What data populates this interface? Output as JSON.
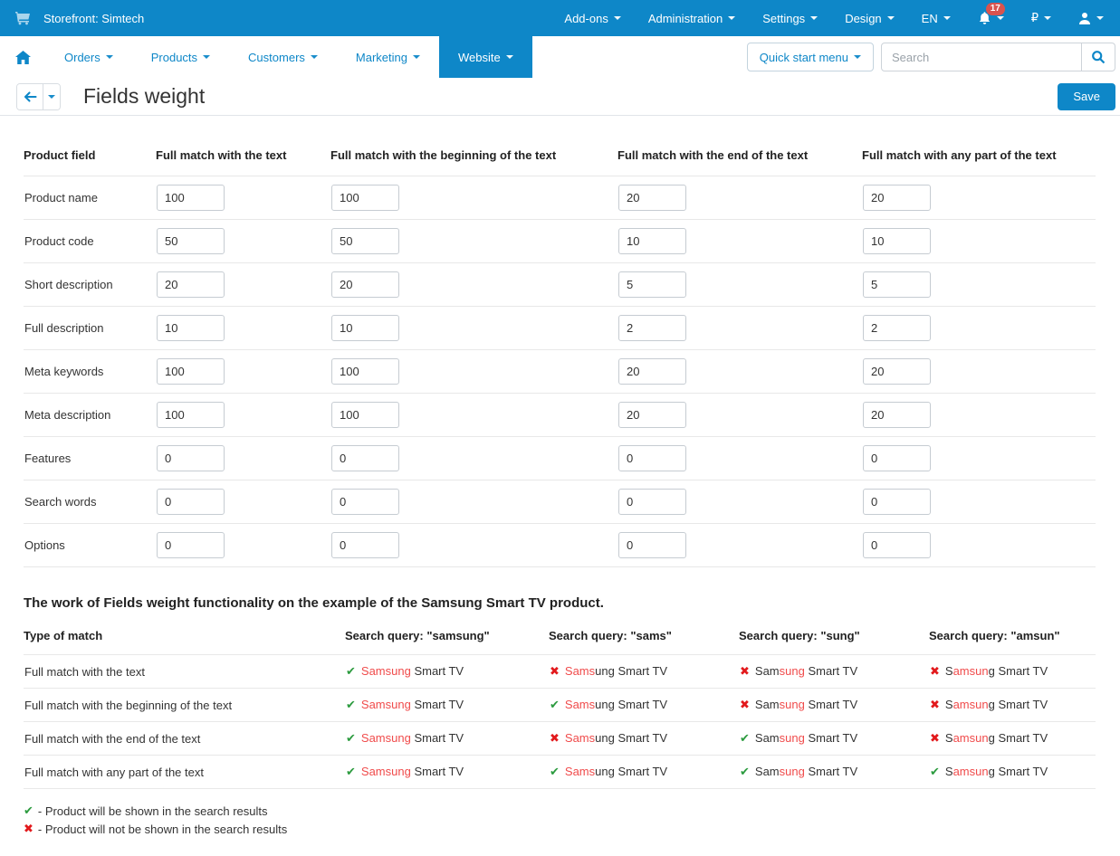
{
  "colors": {
    "accent": "#0e87c8",
    "green": "#2c9b3f",
    "red": "#e2191c",
    "highlight_red": "#f04b4b",
    "badge": "#d9534f"
  },
  "topbar": {
    "storefront_label": "Storefront: Simtech",
    "menus": [
      "Add-ons",
      "Administration",
      "Settings",
      "Design",
      "EN"
    ],
    "notification_count": "17",
    "currency": "₽"
  },
  "nav": {
    "items": [
      "Orders",
      "Products",
      "Customers",
      "Marketing",
      "Website"
    ],
    "active": "Website",
    "quick_start_label": "Quick start menu",
    "search_placeholder": "Search"
  },
  "header": {
    "title": "Fields weight",
    "save_label": "Save"
  },
  "weights_table": {
    "columns": [
      "Product field",
      "Full match with the text",
      "Full match with the beginning of the text",
      "Full match with the end of the text",
      "Full match with any part of the text"
    ],
    "rows": [
      {
        "label": "Product name",
        "values": [
          "100",
          "100",
          "20",
          "20"
        ]
      },
      {
        "label": "Product code",
        "values": [
          "50",
          "50",
          "10",
          "10"
        ]
      },
      {
        "label": "Short description",
        "values": [
          "20",
          "20",
          "5",
          "5"
        ]
      },
      {
        "label": "Full description",
        "values": [
          "10",
          "10",
          "2",
          "2"
        ]
      },
      {
        "label": "Meta keywords",
        "values": [
          "100",
          "100",
          "20",
          "20"
        ]
      },
      {
        "label": "Meta description",
        "values": [
          "100",
          "100",
          "20",
          "20"
        ]
      },
      {
        "label": "Features",
        "values": [
          "0",
          "0",
          "0",
          "0"
        ]
      },
      {
        "label": "Search words",
        "values": [
          "0",
          "0",
          "0",
          "0"
        ]
      },
      {
        "label": "Options",
        "values": [
          "0",
          "0",
          "0",
          "0"
        ]
      }
    ]
  },
  "example": {
    "heading": "The work of Fields weight functionality on the example of the Samsung Smart TV product.",
    "columns": [
      "Type of match",
      "Search query: \"samsung\"",
      "Search query: \"sams\"",
      "Search query: \"sung\"",
      "Search query: \"amsun\""
    ],
    "rows": [
      {
        "label": "Full match with the text",
        "results": [
          {
            "shown": true,
            "pre": "",
            "hl": "Samsung",
            "post": " Smart TV"
          },
          {
            "shown": false,
            "pre": "",
            "hl": "Sams",
            "post": "ung Smart TV"
          },
          {
            "shown": false,
            "pre": "Sam",
            "hl": "sung",
            "post": " Smart TV"
          },
          {
            "shown": false,
            "pre": "S",
            "hl": "amsun",
            "post": "g Smart TV"
          }
        ]
      },
      {
        "label": "Full match with the beginning of the text",
        "results": [
          {
            "shown": true,
            "pre": "",
            "hl": "Samsung",
            "post": " Smart TV"
          },
          {
            "shown": true,
            "pre": "",
            "hl": "Sams",
            "post": "ung Smart TV"
          },
          {
            "shown": false,
            "pre": "Sam",
            "hl": "sung",
            "post": " Smart TV"
          },
          {
            "shown": false,
            "pre": "S",
            "hl": "amsun",
            "post": "g Smart TV"
          }
        ]
      },
      {
        "label": "Full match with the end of the text",
        "results": [
          {
            "shown": true,
            "pre": "",
            "hl": "Samsung",
            "post": " Smart TV"
          },
          {
            "shown": false,
            "pre": "",
            "hl": "Sams",
            "post": "ung Smart TV"
          },
          {
            "shown": true,
            "pre": "Sam",
            "hl": "sung",
            "post": " Smart TV"
          },
          {
            "shown": false,
            "pre": "S",
            "hl": "amsun",
            "post": "g Smart TV"
          }
        ]
      },
      {
        "label": "Full match with any part of the text",
        "results": [
          {
            "shown": true,
            "pre": "",
            "hl": "Samsung",
            "post": " Smart TV"
          },
          {
            "shown": true,
            "pre": "",
            "hl": "Sams",
            "post": "ung Smart TV"
          },
          {
            "shown": true,
            "pre": "Sam",
            "hl": "sung",
            "post": " Smart TV"
          },
          {
            "shown": true,
            "pre": "S",
            "hl": "amsun",
            "post": "g Smart TV"
          }
        ]
      }
    ]
  },
  "legend": [
    {
      "shown": true,
      "text": "- Product will be shown in the search results"
    },
    {
      "shown": false,
      "text": "- Product will not be shown in the search results"
    }
  ],
  "marks": {
    "shown": "✔",
    "not_shown": "✖"
  }
}
